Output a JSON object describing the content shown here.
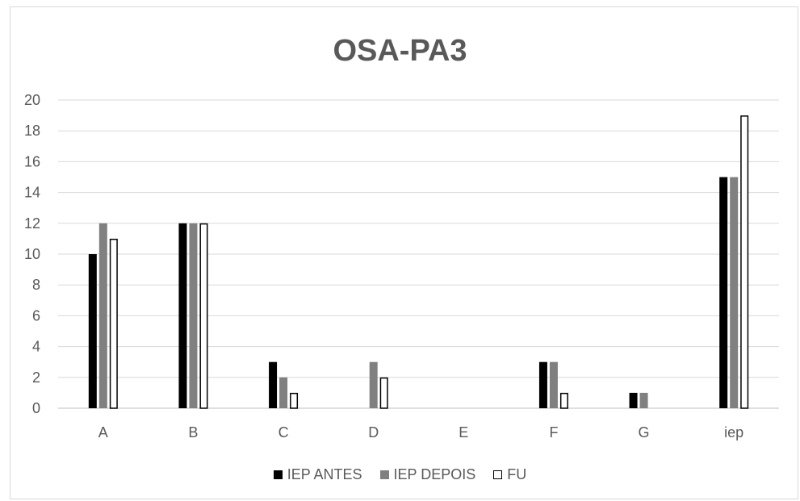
{
  "chart_data": {
    "type": "bar",
    "title": "OSA-PA3",
    "categories": [
      "A",
      "B",
      "C",
      "D",
      "E",
      "F",
      "G",
      "iep"
    ],
    "series": [
      {
        "name": "IEP ANTES",
        "values": [
          10,
          12,
          3,
          0,
          0,
          3,
          1,
          15
        ],
        "color": "#000000"
      },
      {
        "name": "IEP DEPOIS",
        "values": [
          12,
          12,
          2,
          3,
          0,
          3,
          1,
          15
        ],
        "color": "#808080"
      },
      {
        "name": "FU",
        "values": [
          11,
          12,
          1,
          2,
          0,
          1,
          0,
          19
        ],
        "color": "#ffffff"
      }
    ],
    "y_ticks": [
      "0",
      "2",
      "4",
      "6",
      "8",
      "10",
      "12",
      "14",
      "16",
      "18",
      "20"
    ],
    "ylim": [
      0,
      20
    ],
    "grid": true,
    "legend_position": "bottom"
  }
}
